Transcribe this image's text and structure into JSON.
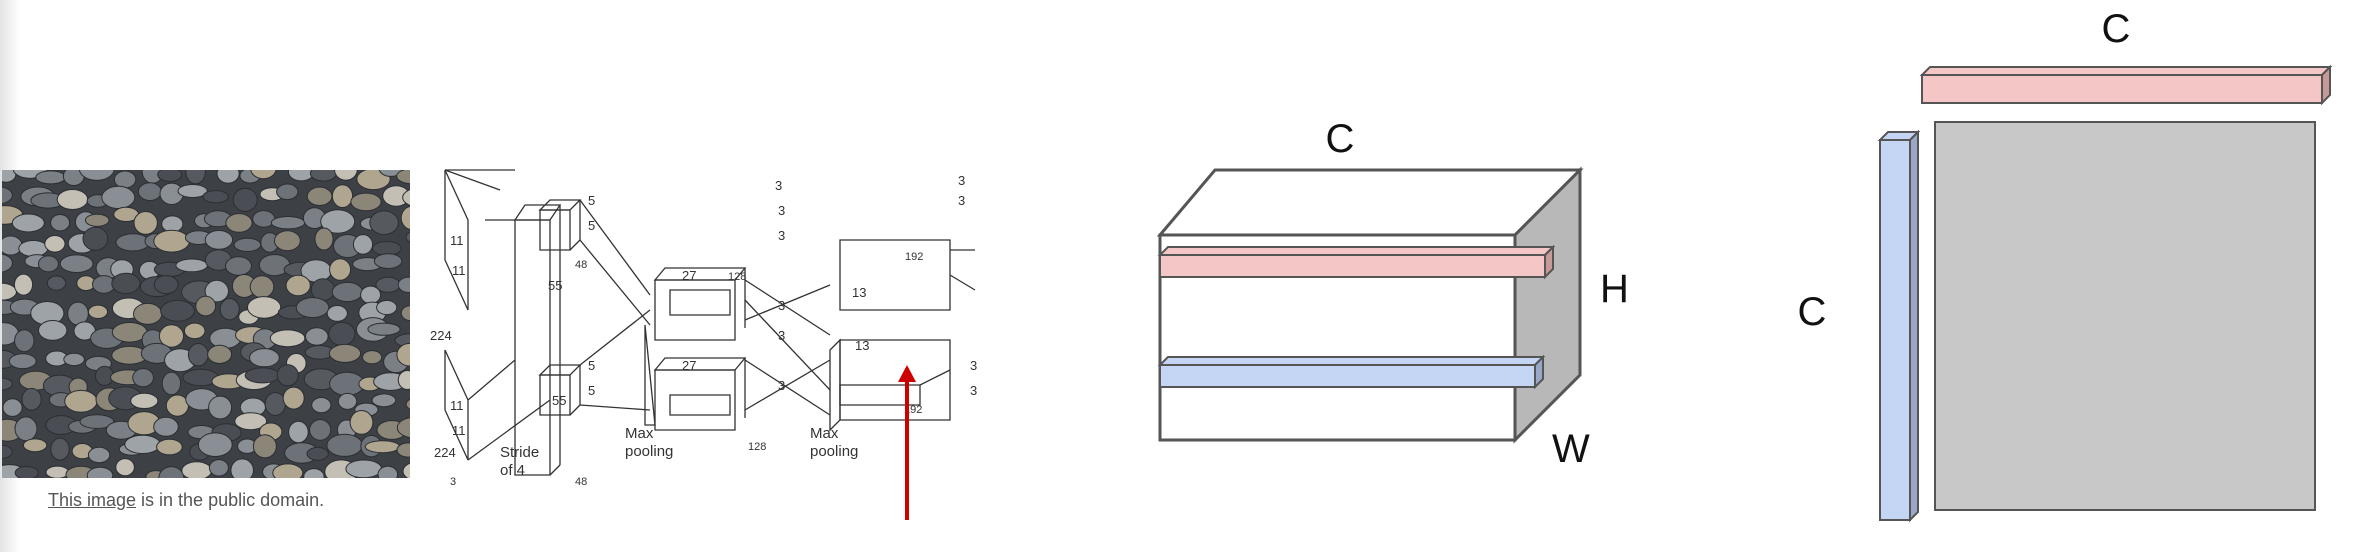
{
  "photo": {
    "caption_link": "This image",
    "caption_rest": " is in the public domain."
  },
  "network": {
    "labels": {
      "in_kernel_a": "11",
      "in_kernel_b": "11",
      "in_kernel_c": "11",
      "in_kernel_d": "11",
      "in_size_a": "224",
      "in_size_b": "224",
      "in_channels": "3",
      "stride": "Stride\nof 4",
      "c1_size": "55",
      "c1_size_b": "55",
      "c1_depth": "48",
      "c1_depth_b": "48",
      "c1_k_a": "5",
      "c1_k_b": "5",
      "c1_k_c": "5",
      "c1_k_d": "5",
      "pool1": "Max\npooling",
      "c2_size": "27",
      "c2_size_b": "27",
      "c2_depth": "128",
      "c2_depth_b": "128",
      "c2_k": [
        "3",
        "3",
        "3",
        "3",
        "3",
        "3"
      ],
      "pool2": "Max\npooling",
      "c3_size": "13",
      "c3_size_b": "13",
      "c3_depth": "192",
      "c3_depth_b": "192",
      "c3_k": [
        "3",
        "3",
        "3",
        "3"
      ]
    }
  },
  "cube": {
    "label_top": "C",
    "label_right": "H",
    "label_bottom": "W"
  },
  "gram": {
    "label_top": "C",
    "label_left": "C"
  },
  "colors": {
    "pink": "#f4c6c6",
    "pink_dark": "#c79a9a",
    "blue": "#c5d6f4",
    "blue_dark": "#9aa8c8",
    "gray": "#c8c8c8",
    "side_gray": "#b8b8b8",
    "arrow": "#cc0000",
    "outline": "#555555"
  }
}
